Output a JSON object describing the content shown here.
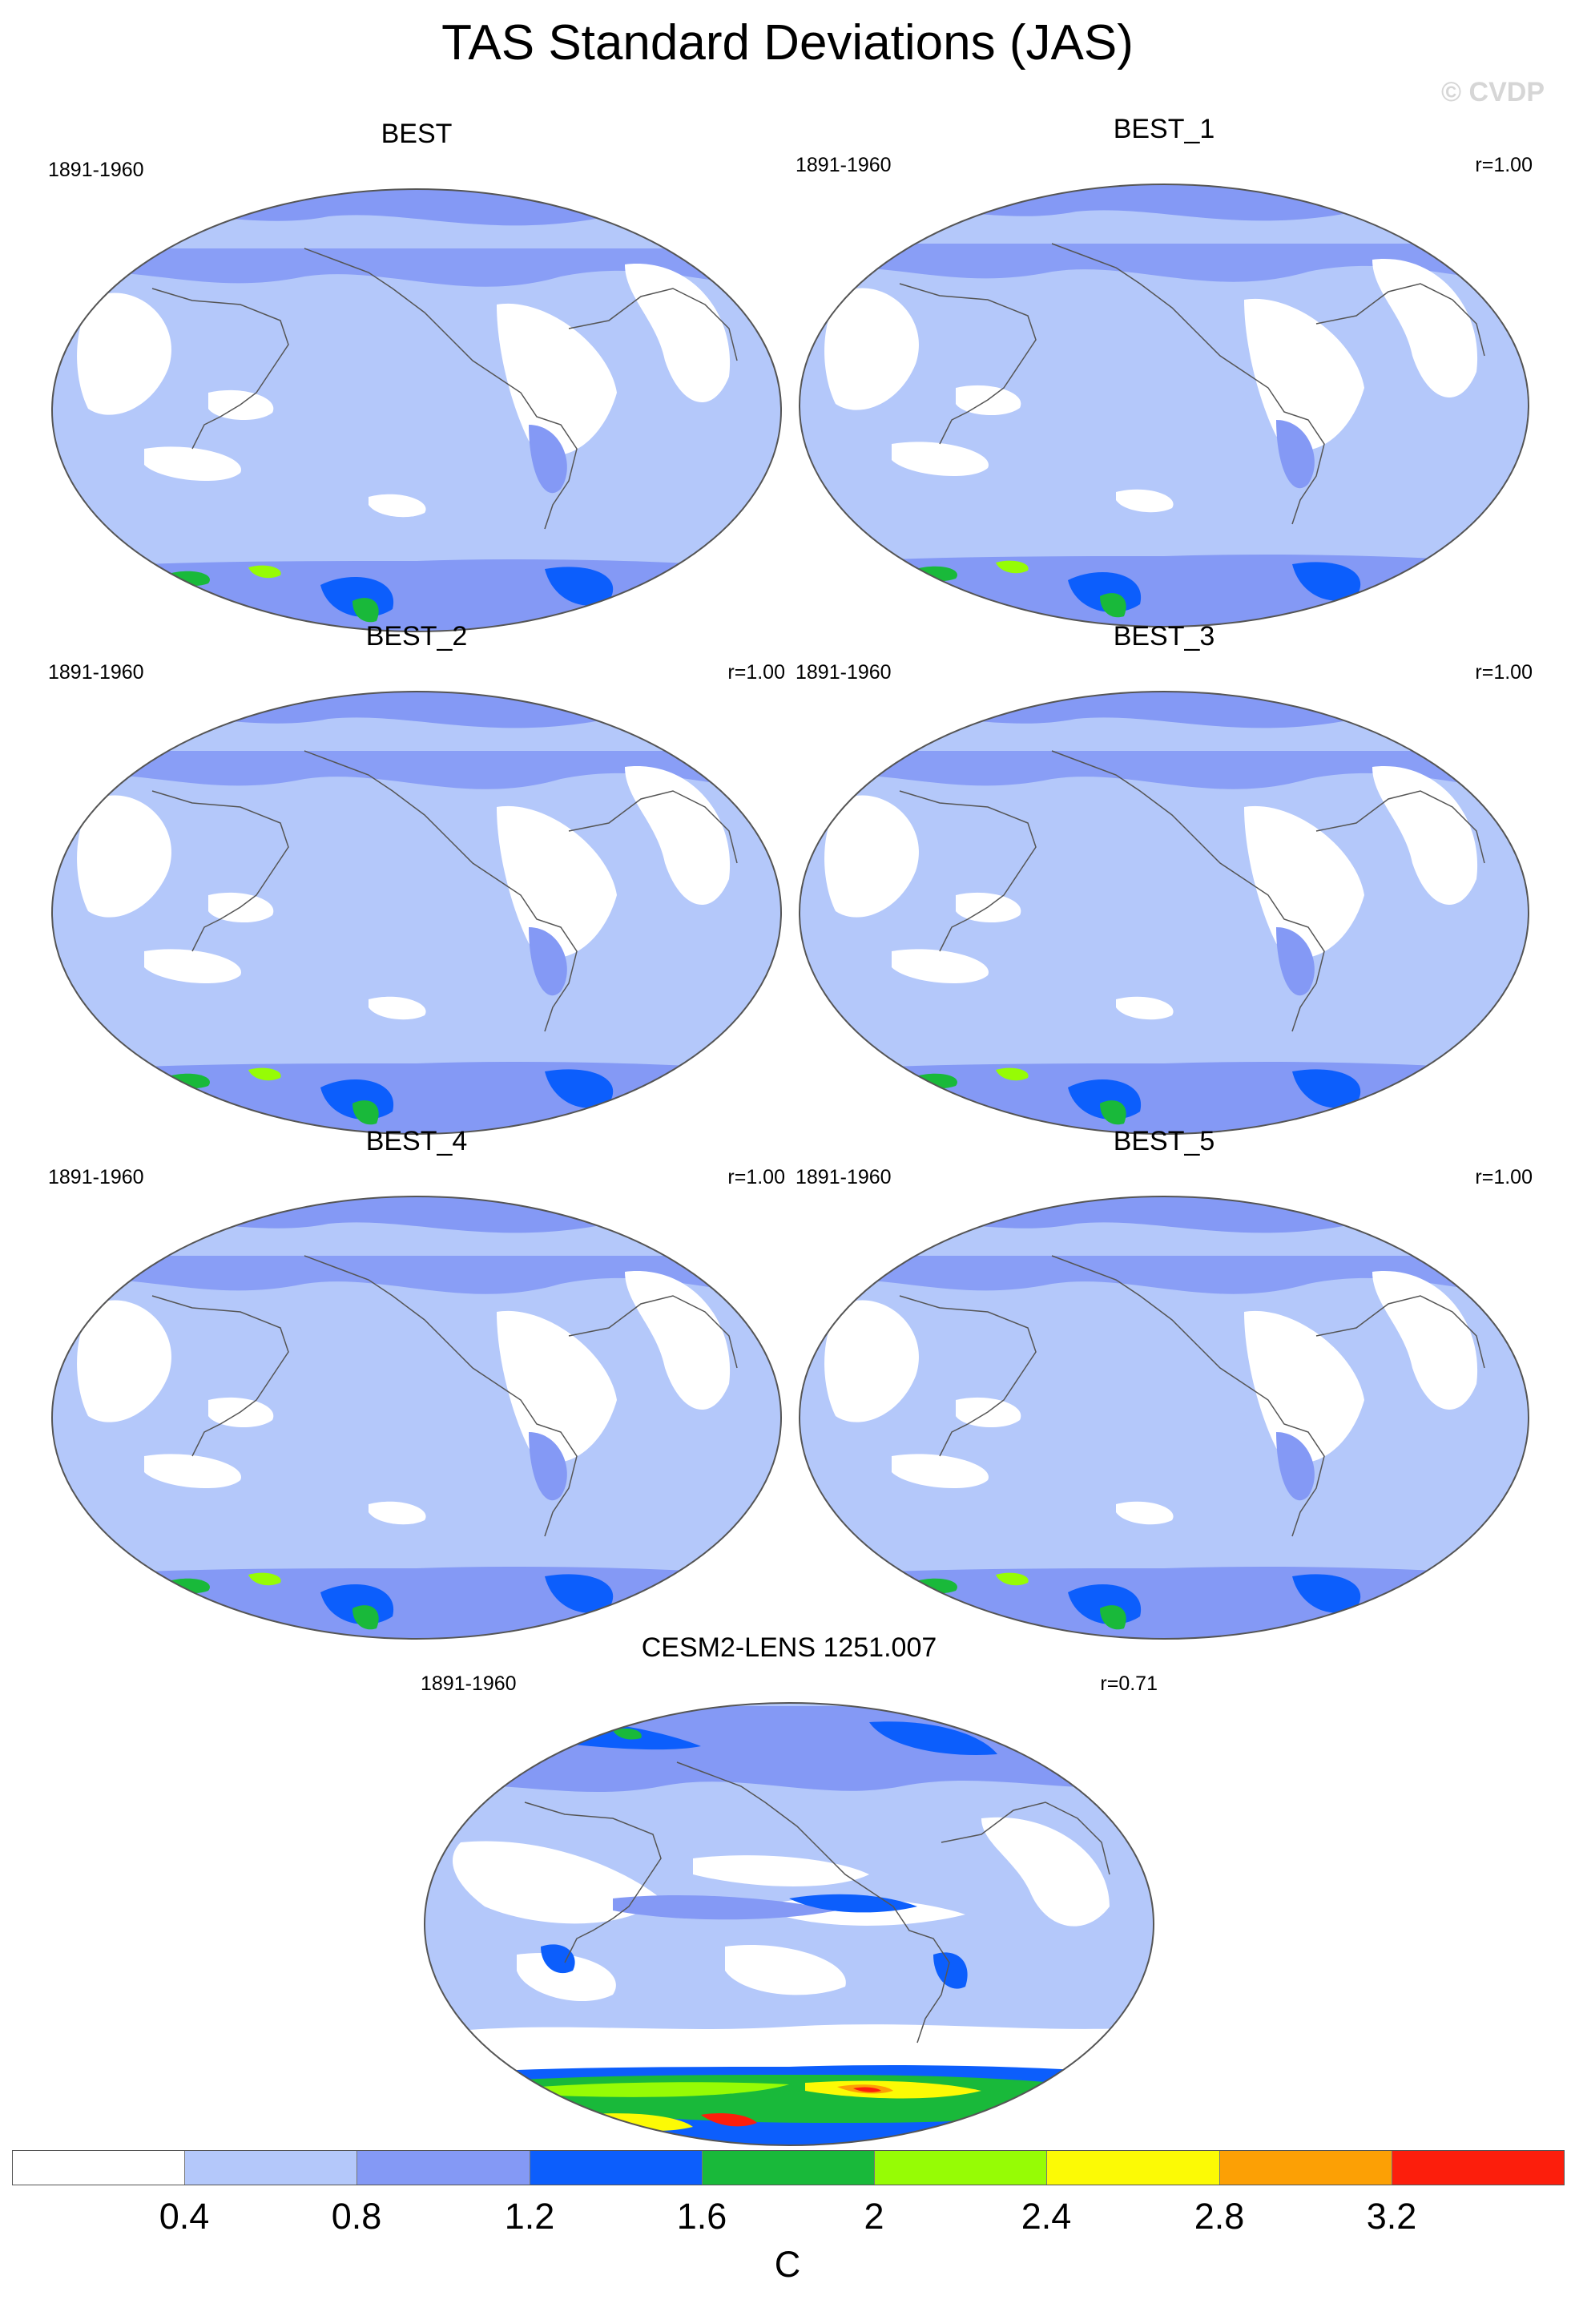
{
  "title": "TAS Standard Deviations (JAS)",
  "watermark": "© CVDP",
  "panels": [
    {
      "name": "BEST",
      "period": "1891-1960",
      "corr": ""
    },
    {
      "name": "BEST_1",
      "period": "1891-1960",
      "corr": "r=1.00"
    },
    {
      "name": "BEST_2",
      "period": "1891-1960",
      "corr": "r=1.00"
    },
    {
      "name": "BEST_3",
      "period": "1891-1960",
      "corr": "r=1.00"
    },
    {
      "name": "BEST_4",
      "period": "1891-1960",
      "corr": "r=1.00"
    },
    {
      "name": "BEST_5",
      "period": "1891-1960",
      "corr": "r=1.00"
    },
    {
      "name": "CESM2-LENS 1251.007",
      "period": "1891-1960",
      "corr": "r=0.71"
    }
  ],
  "colorbar": {
    "unit": "C",
    "tick_labels": [
      "0.4",
      "0.8",
      "1.2",
      "1.6",
      "2",
      "2.4",
      "2.8",
      "3.2"
    ],
    "colors": [
      "#ffffff",
      "#b4c8fa",
      "#8499f5",
      "#0c5efc",
      "#19b93a",
      "#96fc05",
      "#fcfa05",
      "#fca005",
      "#fc1e0c"
    ]
  }
}
